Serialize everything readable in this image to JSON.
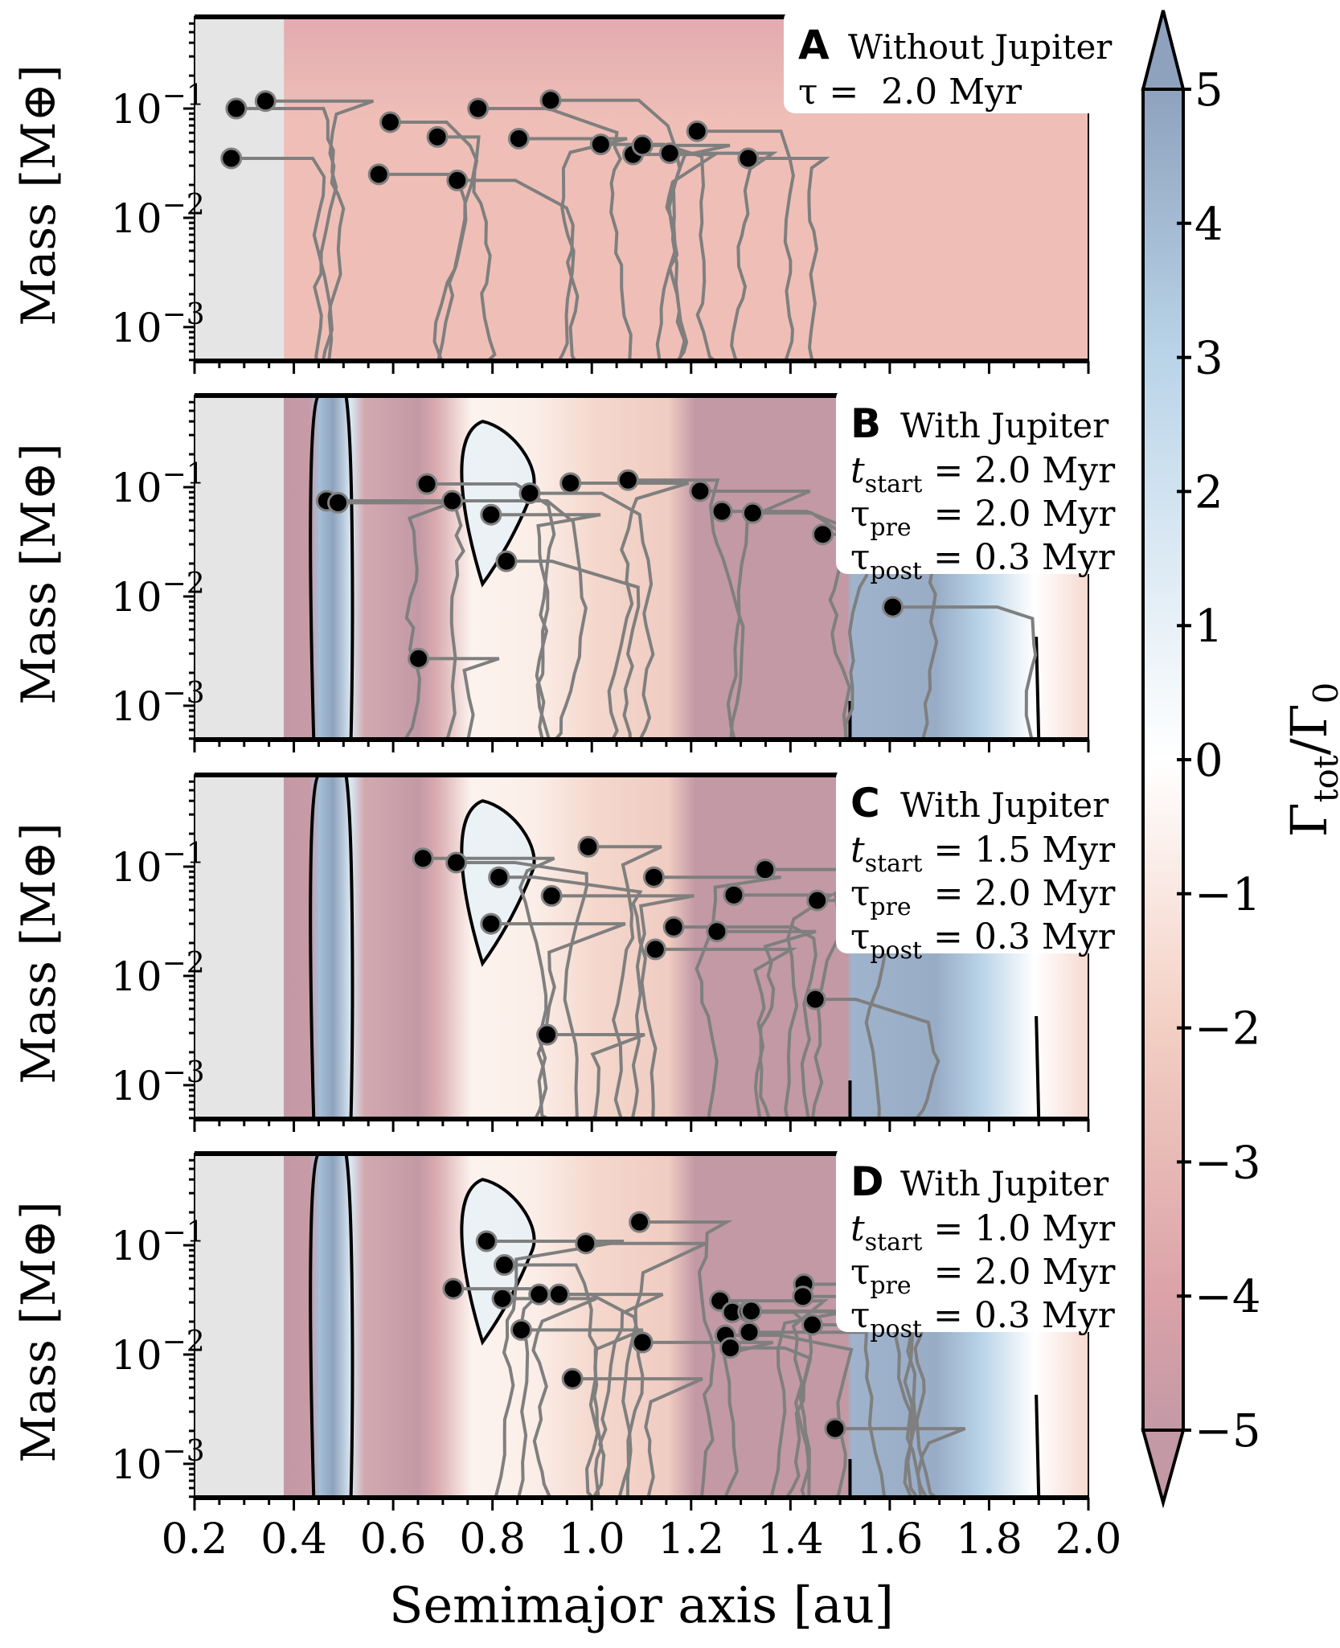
{
  "chart_data": {
    "type": "scatter",
    "xlabel": "Semimajor axis [au]",
    "ylabel": "Mass [M⊕]",
    "xlim": [
      0.2,
      2.0
    ],
    "ylim": [
      0.00049,
      0.69
    ],
    "yscale": "log",
    "xticks": [
      "0.2",
      "0.4",
      "0.6",
      "0.8",
      "1.0",
      "1.2",
      "1.4",
      "1.6",
      "1.8",
      "2.0"
    ],
    "yticks": [
      {
        "value": 0.1,
        "label": "10",
        "exp": "−1"
      },
      {
        "value": 0.01,
        "label": "10",
        "exp": "−2"
      },
      {
        "value": 0.001,
        "label": "10",
        "exp": "−3"
      }
    ],
    "colorbar": {
      "label": "Γ",
      "label_sub": "tot",
      "label_mid": "/Γ",
      "label_sub2": "0",
      "range": [
        -5,
        5
      ],
      "extend": "both",
      "ticks": [
        "5",
        "4",
        "3",
        "2",
        "1",
        "0",
        "−1",
        "−2",
        "−3",
        "−4",
        "−5"
      ],
      "colors": {
        "5": "#8ea2bd",
        "3": "#b9d4e8",
        "0": "#ffffff",
        "-2": "#f3cfc3",
        "-4": "#dba2a8",
        "-5": "#c399a6"
      }
    },
    "panels": [
      {
        "letter": "A",
        "title": "Without Jupiter",
        "params": [
          {
            "sym": "τ",
            "sub": "",
            "val": " =  2.0 Myr"
          }
        ],
        "jupiter": false,
        "points": [
          [
            0.284,
            0.1
          ],
          [
            0.343,
            0.117
          ],
          [
            0.274,
            0.035
          ],
          [
            0.594,
            0.075
          ],
          [
            0.689,
            0.055
          ],
          [
            0.771,
            0.1
          ],
          [
            0.917,
            0.119
          ],
          [
            0.853,
            0.053
          ],
          [
            0.571,
            0.025
          ],
          [
            0.729,
            0.022
          ],
          [
            1.018,
            0.047
          ],
          [
            1.083,
            0.038
          ],
          [
            1.102,
            0.046
          ],
          [
            1.157,
            0.039
          ],
          [
            1.212,
            0.062
          ],
          [
            1.315,
            0.035
          ]
        ]
      },
      {
        "letter": "B",
        "title": "With Jupiter",
        "params": [
          {
            "sym": "t",
            "sub": "start",
            "val": " = 2.0 Myr"
          },
          {
            "sym": "τ",
            "sub": "pre",
            "val": "  = 2.0 Myr"
          },
          {
            "sym": "τ",
            "sub": "post",
            "val": " = 0.3 Myr"
          }
        ],
        "jupiter": true,
        "points": [
          [
            0.466,
            0.075
          ],
          [
            0.489,
            0.072
          ],
          [
            0.668,
            0.107
          ],
          [
            0.719,
            0.075
          ],
          [
            0.797,
            0.056
          ],
          [
            0.875,
            0.088
          ],
          [
            0.828,
            0.021
          ],
          [
            0.957,
            0.109
          ],
          [
            1.073,
            0.116
          ],
          [
            1.218,
            0.092
          ],
          [
            1.262,
            0.06
          ],
          [
            1.324,
            0.058
          ],
          [
            1.465,
            0.037
          ],
          [
            1.606,
            0.008
          ],
          [
            0.651,
            0.0027
          ]
        ]
      },
      {
        "letter": "C",
        "title": "With Jupiter",
        "params": [
          {
            "sym": "t",
            "sub": "start",
            "val": " = 1.5 Myr"
          },
          {
            "sym": "τ",
            "sub": "pre",
            "val": "  = 2.0 Myr"
          },
          {
            "sym": "τ",
            "sub": "post",
            "val": " = 0.3 Myr"
          }
        ],
        "jupiter": true,
        "points": [
          [
            0.66,
            0.119
          ],
          [
            0.727,
            0.109
          ],
          [
            0.813,
            0.08
          ],
          [
            0.993,
            0.152
          ],
          [
            0.919,
            0.054
          ],
          [
            0.797,
            0.03
          ],
          [
            1.125,
            0.08
          ],
          [
            1.349,
            0.094
          ],
          [
            1.286,
            0.055
          ],
          [
            1.165,
            0.028
          ],
          [
            1.128,
            0.0175
          ],
          [
            1.252,
            0.0255
          ],
          [
            1.454,
            0.049
          ],
          [
            1.45,
            0.0061
          ],
          [
            0.91,
            0.0029
          ]
        ]
      },
      {
        "letter": "D",
        "title": "With Jupiter",
        "params": [
          {
            "sym": "t",
            "sub": "start",
            "val": " = 1.0 Myr"
          },
          {
            "sym": "τ",
            "sub": "pre",
            "val": "  = 2.0 Myr"
          },
          {
            "sym": "τ",
            "sub": "post",
            "val": " = 0.3 Myr"
          }
        ],
        "jupiter": true,
        "points": [
          [
            1.096,
            0.163
          ],
          [
            0.788,
            0.109
          ],
          [
            0.824,
            0.066
          ],
          [
            0.988,
            0.104
          ],
          [
            0.721,
            0.04
          ],
          [
            0.82,
            0.0325
          ],
          [
            0.894,
            0.0355
          ],
          [
            0.934,
            0.0355
          ],
          [
            0.858,
            0.0168
          ],
          [
            1.102,
            0.0129
          ],
          [
            0.961,
            0.006
          ],
          [
            1.258,
            0.031
          ],
          [
            1.283,
            0.0244
          ],
          [
            1.315,
            0.0247
          ],
          [
            1.321,
            0.025
          ],
          [
            1.427,
            0.044
          ],
          [
            1.425,
            0.034
          ],
          [
            1.269,
            0.015
          ],
          [
            1.317,
            0.016
          ],
          [
            1.279,
            0.0115
          ],
          [
            1.444,
            0.0187
          ],
          [
            1.49,
            0.0021
          ]
        ]
      }
    ]
  }
}
